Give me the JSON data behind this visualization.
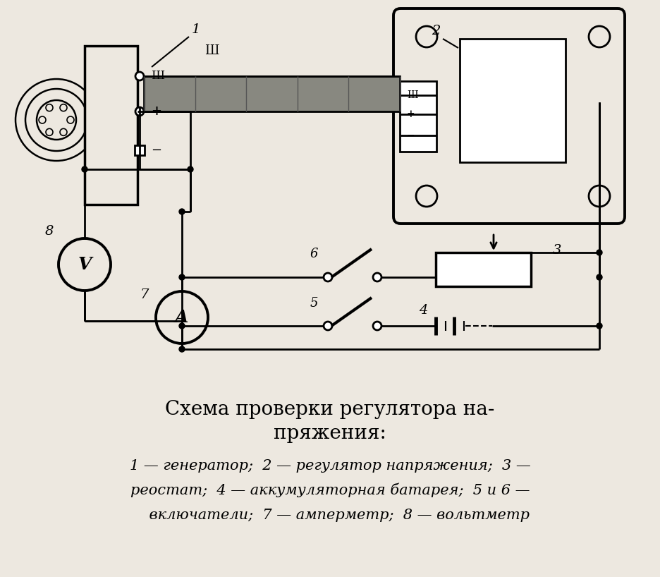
{
  "bg_color": "#ede8e0",
  "line_color": "#000000",
  "title_line1": "Схема проверки регулятора на-",
  "title_line2": "пряжения:",
  "legend_line1": "1 — генератор;  2 — регулятор напряжения;  3 —",
  "legend_line2": "реостат;  4 — аккумуляторная батарея;  5 и 6 —",
  "legend_line3": "    включатели;  7 — амперметр;  8 — вольтметр",
  "title_fontsize": 20,
  "legend_fontsize": 15
}
